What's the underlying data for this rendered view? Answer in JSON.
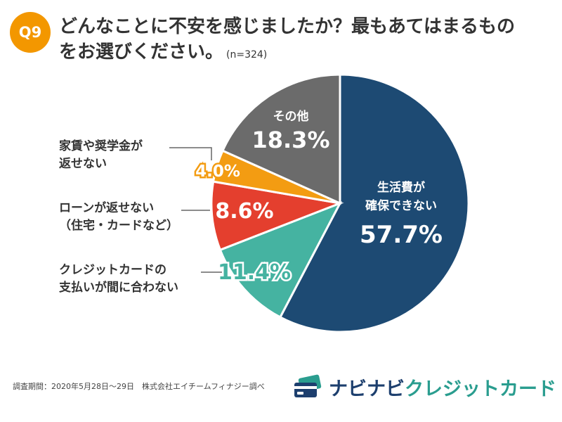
{
  "question": {
    "badge": "Q9",
    "title_line1": "どんなことに不安を感じましたか？最もあてはまるもの",
    "title_line2": "をお選びください。",
    "sample_note": "(n=324)"
  },
  "chart_data": {
    "type": "pie",
    "title": "どんなことに不安を感じましたか？最もあてはまるものをお選びください。",
    "unit": "%",
    "slices": [
      {
        "label": "生活費が確保できない",
        "value": 57.7,
        "value_label": "57.7%",
        "color": "#1d4a73"
      },
      {
        "label": "クレジットカードの支払いが間に合わない",
        "value": 11.4,
        "value_label": "11.4%",
        "color": "#45b3a1"
      },
      {
        "label": "ローンが返せない（住宅・カードなど）",
        "value": 8.6,
        "value_label": "8.6%",
        "color": "#e43f2e"
      },
      {
        "label": "家賃や奨学金が返せない",
        "value": 4.0,
        "value_label": "4.0%",
        "color": "#f39c12"
      },
      {
        "label": "その他",
        "value": 18.3,
        "value_label": "18.3%",
        "color": "#6b6b6b"
      }
    ]
  },
  "labels": {
    "inside_living": "生活費が\n確保できない",
    "inside_other": "その他",
    "callout_rent": "家賃や奨学金が\n返せない",
    "callout_loan": "ローンが返せない\n（住宅・カードなど）",
    "callout_card": "クレジットカードの\n支払いが間に合わない"
  },
  "footer": {
    "source": "調査期間：2020年5月28日〜29日　株式会社エイチームフィナジー調べ",
    "logo_main": "ナビナビ",
    "logo_accent": "クレジットカード",
    "logo_icon": "credit-card-icon"
  }
}
